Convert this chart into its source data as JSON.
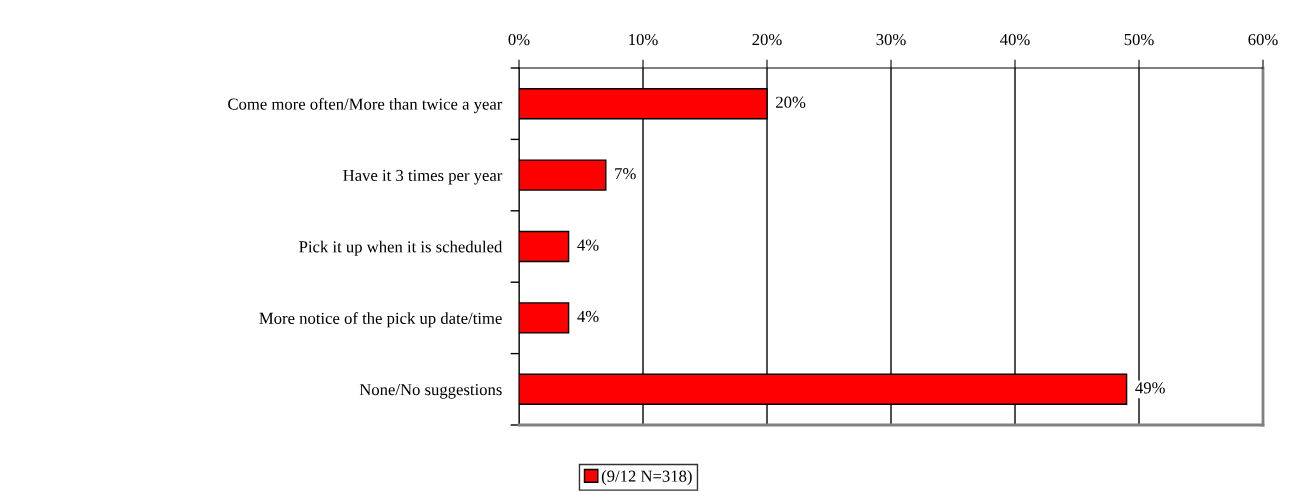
{
  "chart_data": {
    "type": "bar",
    "orientation": "horizontal",
    "categories": [
      "Come more often/More than twice a year",
      "Have it 3 times per year",
      "Pick it up when it is scheduled",
      "More notice of the pick up date/time",
      "None/No suggestions"
    ],
    "series": [
      {
        "name": "(9/12 N=318)",
        "color": "#ff0000",
        "values": [
          20,
          7,
          4,
          4,
          49
        ],
        "value_labels": [
          "20%",
          "7%",
          "4%",
          "4%",
          "49%"
        ]
      }
    ],
    "xlim": [
      0,
      60
    ],
    "xticks": [
      {
        "value": 0,
        "label": "0%"
      },
      {
        "value": 10,
        "label": "10%"
      },
      {
        "value": 20,
        "label": "20%"
      },
      {
        "value": 30,
        "label": "30%"
      },
      {
        "value": 40,
        "label": "40%"
      },
      {
        "value": 50,
        "label": "50%"
      },
      {
        "value": 60,
        "label": "60%"
      }
    ],
    "grid": "x",
    "legend": "bottom"
  }
}
